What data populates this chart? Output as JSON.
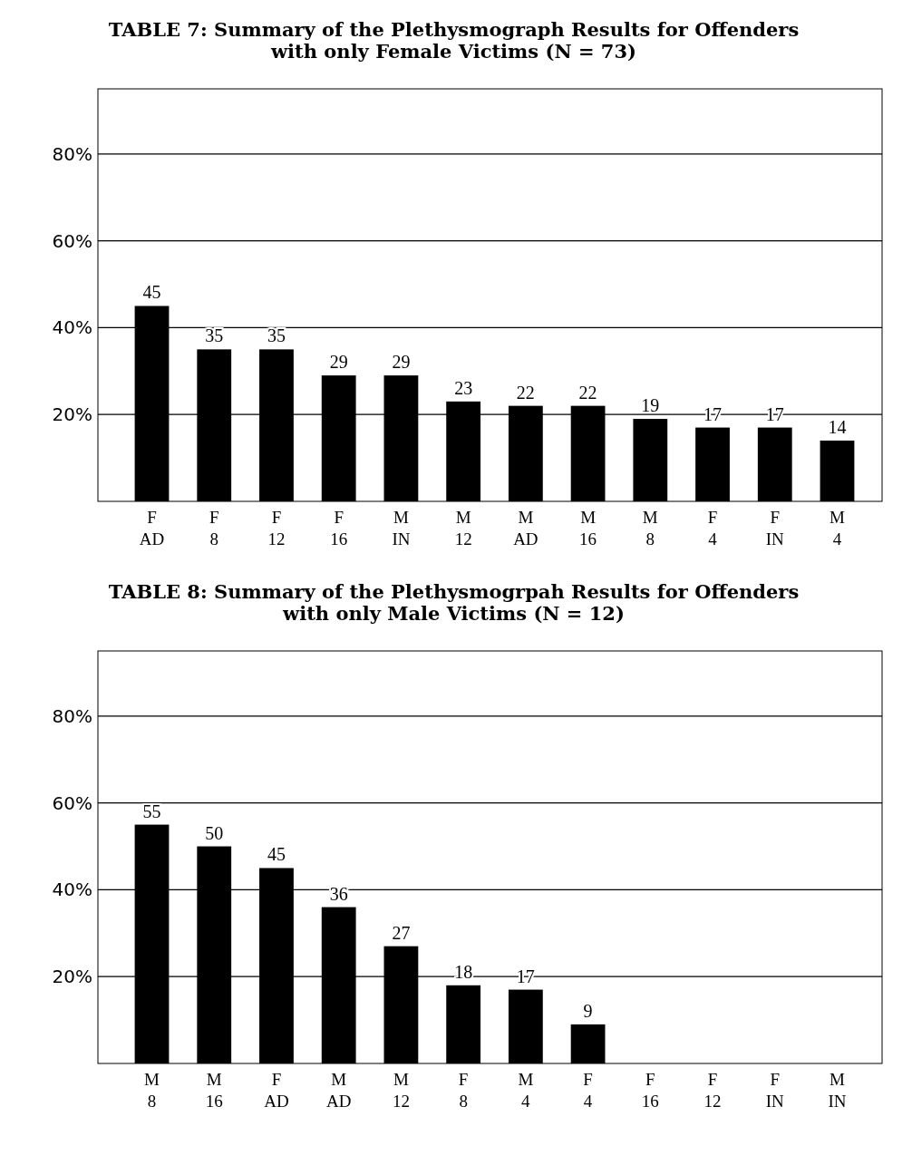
{
  "chart_data": [
    {
      "type": "bar",
      "title": "TABLE 7: Summary of the Plethysmograph Results for Offenders with only Female Victims (N = 73)",
      "categories": [
        "F AD",
        "F 8",
        "F 12",
        "F 16",
        "M IN",
        "M 12",
        "M AD",
        "M 16",
        "M 8",
        "F 4",
        "F IN",
        "M 4"
      ],
      "values": [
        45,
        35,
        35,
        29,
        29,
        23,
        22,
        22,
        19,
        17,
        17,
        14
      ],
      "color": "#000000",
      "ylim": [
        0,
        95
      ],
      "yticks": [
        {
          "value": 20,
          "label": "20%"
        },
        {
          "value": 40,
          "label": "40%"
        },
        {
          "value": 60,
          "label": "60%"
        },
        {
          "value": 80,
          "label": "80%"
        }
      ],
      "grid": "y",
      "data_labels": true
    },
    {
      "type": "bar",
      "title": "TABLE 8: Summary of the Plethysmogrpah Results for Offenders with only Male Victims (N = 12)",
      "categories": [
        "M 8",
        "M 16",
        "F AD",
        "M AD",
        "M 12",
        "F 8",
        "M 4",
        "F 4",
        "F 16",
        "F 12",
        "F IN",
        "M IN"
      ],
      "values": [
        55,
        50,
        45,
        36,
        27,
        18,
        17,
        9,
        null,
        null,
        null,
        null
      ],
      "color": "#000000",
      "ylim": [
        0,
        95
      ],
      "yticks": [
        {
          "value": 20,
          "label": "20%"
        },
        {
          "value": 40,
          "label": "40%"
        },
        {
          "value": 60,
          "label": "60%"
        },
        {
          "value": 80,
          "label": "80%"
        }
      ],
      "grid": "y",
      "data_labels": true
    }
  ]
}
